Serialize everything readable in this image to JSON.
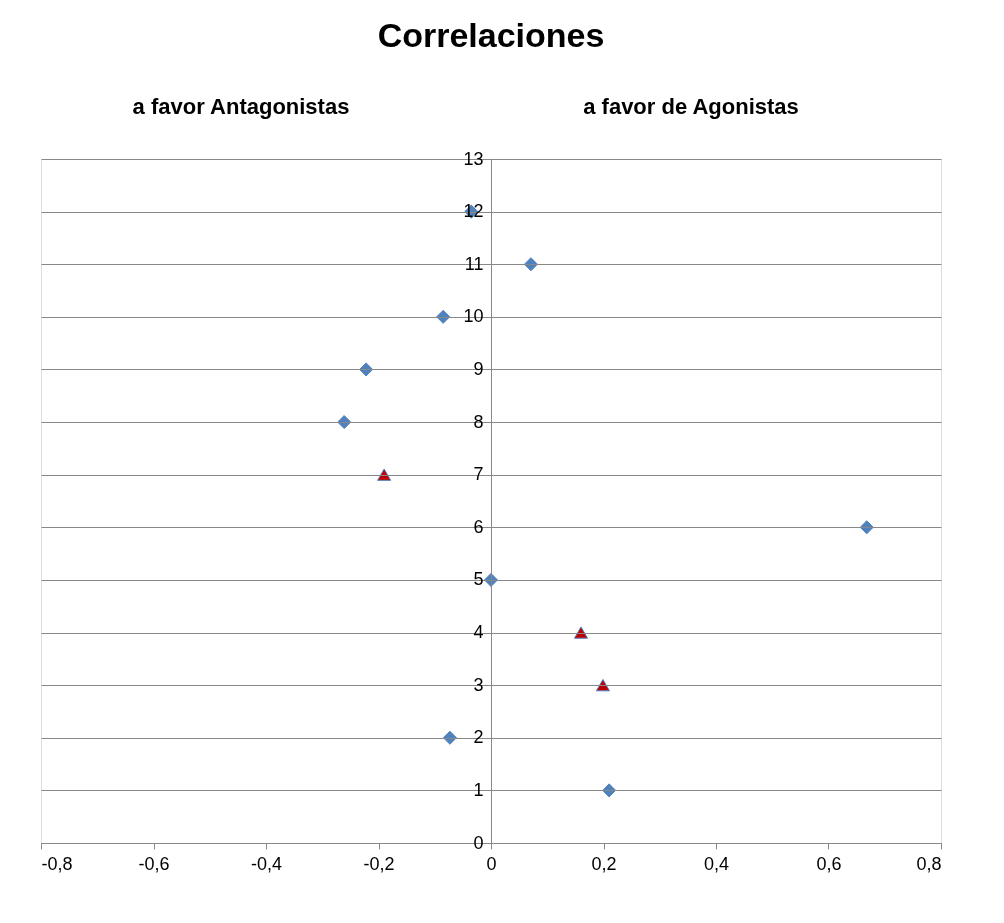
{
  "chart_data": {
    "type": "scatter",
    "title": "Correlaciones",
    "annotations": [
      "a favor Antagonistas",
      "a favor de Agonistas"
    ],
    "series": [
      {
        "color": "#4f81bd",
        "marker": "diamond",
        "x": [
          -0.035,
          0.071,
          -0.085,
          -0.222,
          -0.261,
          0.668,
          0,
          -0.073,
          0.21
        ],
        "values": [
          12,
          11,
          10,
          9,
          8,
          6,
          5,
          2,
          1
        ]
      },
      {
        "color": "#c00000",
        "marker": "triangle",
        "x": [
          -0.19,
          0.16,
          0.199
        ],
        "values": [
          7,
          4,
          3
        ]
      }
    ],
    "xlim": [
      -0.8,
      0.8
    ],
    "xticks": [
      {
        "value": -0.8,
        "label": "-0,8"
      },
      {
        "value": -0.6,
        "label": "-0,6"
      },
      {
        "value": -0.4,
        "label": "-0,4"
      },
      {
        "value": -0.2,
        "label": "-0,2"
      },
      0,
      {
        "value": 0.2,
        "label": "0,2"
      },
      {
        "value": 0.4,
        "label": "0,4"
      },
      {
        "value": 0.6,
        "label": "0,6"
      },
      {
        "value": 0.8,
        "label": "0,8"
      }
    ],
    "ylim": [
      0,
      13
    ],
    "yticks": [
      0,
      1,
      2,
      3,
      4,
      5,
      6,
      7,
      8,
      9,
      10,
      11,
      12,
      13
    ],
    "grid": "y"
  }
}
